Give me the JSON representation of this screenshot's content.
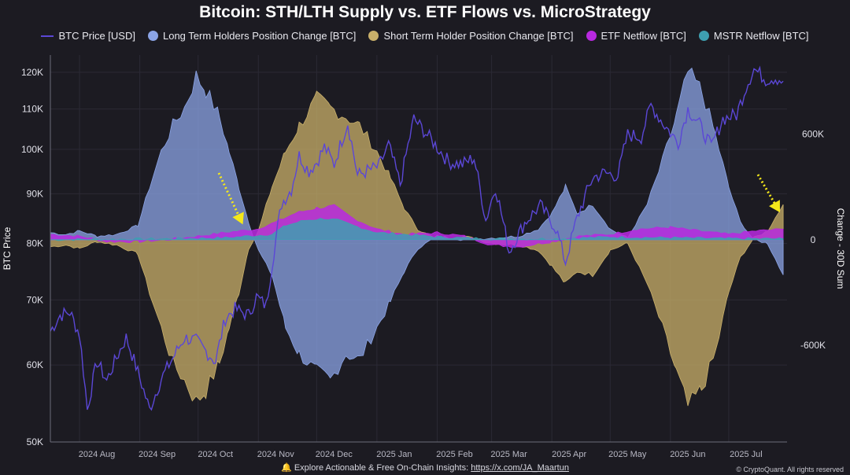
{
  "chart_data": {
    "type": "area",
    "title": "Bitcoin: STH/LTH Supply vs. ETF Flows vs. MicroStrategy",
    "left_axis_label": "BTC Price",
    "right_axis_label": "Change - 30D Sum",
    "left_axis": {
      "scale": "log",
      "range": [
        50000,
        125000
      ],
      "ticks": [
        {
          "value": 50000,
          "label": "50K"
        },
        {
          "value": 60000,
          "label": "60K"
        },
        {
          "value": 70000,
          "label": "70K"
        },
        {
          "value": 80000,
          "label": "80K"
        },
        {
          "value": 90000,
          "label": "90K"
        },
        {
          "value": 100000,
          "label": "100K"
        },
        {
          "value": 110000,
          "label": "110K"
        },
        {
          "value": 120000,
          "label": "120K"
        }
      ]
    },
    "right_axis": {
      "scale": "linear",
      "range": [
        -1150000,
        1050000
      ],
      "ticks": [
        {
          "value": 600000,
          "label": "600K"
        },
        {
          "value": 0,
          "label": "0"
        },
        {
          "value": -600000,
          "label": "-600K"
        }
      ]
    },
    "x_axis": {
      "range": [
        "2024-07-17",
        "2025-07-31"
      ],
      "ticks": [
        {
          "date": "2024-08-01",
          "label": "2024 Aug"
        },
        {
          "date": "2024-09-01",
          "label": "2024 Sep"
        },
        {
          "date": "2024-10-01",
          "label": "2024 Oct"
        },
        {
          "date": "2024-11-01",
          "label": "2024 Nov"
        },
        {
          "date": "2024-12-01",
          "label": "2024 Dec"
        },
        {
          "date": "2025-01-01",
          "label": "2025 Jan"
        },
        {
          "date": "2025-02-01",
          "label": "2025 Feb"
        },
        {
          "date": "2025-03-01",
          "label": "2025 Mar"
        },
        {
          "date": "2025-04-01",
          "label": "2025 Apr"
        },
        {
          "date": "2025-05-01",
          "label": "2025 May"
        },
        {
          "date": "2025-06-01",
          "label": "2025 Jun"
        },
        {
          "date": "2025-07-01",
          "label": "2025 Jul"
        }
      ]
    },
    "grid": true,
    "legend_position": "top",
    "series": [
      {
        "name": "BTC Price [USD]",
        "axis": "left",
        "kind": "line",
        "color": "#5b47d6",
        "points": [
          [
            "2024-07-17",
            65000
          ],
          [
            "2024-07-22",
            67500
          ],
          [
            "2024-07-27",
            68000
          ],
          [
            "2024-08-01",
            64500
          ],
          [
            "2024-08-05",
            54000
          ],
          [
            "2024-08-10",
            60500
          ],
          [
            "2024-08-15",
            57800
          ],
          [
            "2024-08-20",
            61000
          ],
          [
            "2024-08-25",
            64000
          ],
          [
            "2024-08-31",
            59000
          ],
          [
            "2024-09-06",
            54000
          ],
          [
            "2024-09-12",
            58000
          ],
          [
            "2024-09-18",
            61000
          ],
          [
            "2024-09-24",
            64000
          ],
          [
            "2024-09-30",
            63500
          ],
          [
            "2024-10-05",
            62000
          ],
          [
            "2024-10-10",
            60500
          ],
          [
            "2024-10-15",
            67000
          ],
          [
            "2024-10-20",
            68500
          ],
          [
            "2024-10-27",
            67500
          ],
          [
            "2024-10-31",
            70500
          ],
          [
            "2024-11-05",
            69000
          ],
          [
            "2024-11-08",
            76000
          ],
          [
            "2024-11-13",
            88000
          ],
          [
            "2024-11-18",
            91000
          ],
          [
            "2024-11-22",
            98500
          ],
          [
            "2024-11-27",
            95000
          ],
          [
            "2024-12-01",
            97000
          ],
          [
            "2024-12-05",
            100500
          ],
          [
            "2024-12-10",
            96500
          ],
          [
            "2024-12-17",
            106500
          ],
          [
            "2024-12-22",
            94000
          ],
          [
            "2024-12-27",
            95000
          ],
          [
            "2025-01-02",
            96000
          ],
          [
            "2025-01-07",
            101000
          ],
          [
            "2025-01-13",
            92000
          ],
          [
            "2025-01-20",
            107500
          ],
          [
            "2025-01-26",
            104000
          ],
          [
            "2025-02-01",
            100500
          ],
          [
            "2025-02-07",
            97000
          ],
          [
            "2025-02-14",
            96500
          ],
          [
            "2025-02-20",
            98000
          ],
          [
            "2025-02-26",
            84500
          ],
          [
            "2025-03-03",
            91500
          ],
          [
            "2025-03-10",
            78500
          ],
          [
            "2025-03-18",
            84000
          ],
          [
            "2025-03-26",
            87500
          ],
          [
            "2025-04-03",
            83000
          ],
          [
            "2025-04-08",
            76500
          ],
          [
            "2025-04-14",
            85000
          ],
          [
            "2025-04-22",
            93500
          ],
          [
            "2025-04-28",
            94500
          ],
          [
            "2025-05-05",
            94000
          ],
          [
            "2025-05-10",
            103500
          ],
          [
            "2025-05-17",
            103000
          ],
          [
            "2025-05-22",
            111000
          ],
          [
            "2025-05-28",
            106500
          ],
          [
            "2025-06-05",
            101500
          ],
          [
            "2025-06-10",
            110000
          ],
          [
            "2025-06-16",
            106000
          ],
          [
            "2025-06-22",
            100500
          ],
          [
            "2025-06-28",
            107500
          ],
          [
            "2025-07-05",
            108500
          ],
          [
            "2025-07-10",
            116000
          ],
          [
            "2025-07-14",
            121000
          ],
          [
            "2025-07-20",
            118000
          ],
          [
            "2025-07-25",
            118500
          ],
          [
            "2025-07-29",
            117500
          ]
        ]
      },
      {
        "name": "Long Term Holders Position Change [BTC]",
        "axis": "right",
        "kind": "area",
        "color": "#8ba4e6",
        "points": [
          [
            "2024-07-17",
            40000
          ],
          [
            "2024-07-25",
            30000
          ],
          [
            "2024-08-01",
            50000
          ],
          [
            "2024-08-10",
            20000
          ],
          [
            "2024-08-20",
            30000
          ],
          [
            "2024-08-31",
            80000
          ],
          [
            "2024-09-06",
            300000
          ],
          [
            "2024-09-12",
            500000
          ],
          [
            "2024-09-18",
            650000
          ],
          [
            "2024-09-24",
            750000
          ],
          [
            "2024-09-30",
            930000
          ],
          [
            "2024-10-05",
            850000
          ],
          [
            "2024-10-12",
            700000
          ],
          [
            "2024-10-17",
            500000
          ],
          [
            "2024-10-22",
            300000
          ],
          [
            "2024-10-27",
            100000
          ],
          [
            "2024-11-01",
            -60000
          ],
          [
            "2024-11-08",
            -200000
          ],
          [
            "2024-11-15",
            -500000
          ],
          [
            "2024-11-22",
            -650000
          ],
          [
            "2024-12-01",
            -750000
          ],
          [
            "2024-12-08",
            -800000
          ],
          [
            "2024-12-16",
            -650000
          ],
          [
            "2024-12-23",
            -680000
          ],
          [
            "2025-01-01",
            -500000
          ],
          [
            "2025-01-08",
            -350000
          ],
          [
            "2025-01-15",
            -180000
          ],
          [
            "2025-01-22",
            -50000
          ],
          [
            "2025-02-01",
            20000
          ],
          [
            "2025-02-15",
            0
          ],
          [
            "2025-03-01",
            10000
          ],
          [
            "2025-03-15",
            20000
          ],
          [
            "2025-03-25",
            60000
          ],
          [
            "2025-04-01",
            150000
          ],
          [
            "2025-04-08",
            300000
          ],
          [
            "2025-04-14",
            150000
          ],
          [
            "2025-04-22",
            200000
          ],
          [
            "2025-05-01",
            60000
          ],
          [
            "2025-05-10",
            10000
          ],
          [
            "2025-05-20",
            200000
          ],
          [
            "2025-05-28",
            450000
          ],
          [
            "2025-06-04",
            700000
          ],
          [
            "2025-06-10",
            950000
          ],
          [
            "2025-06-17",
            850000
          ],
          [
            "2025-06-24",
            600000
          ],
          [
            "2025-07-01",
            300000
          ],
          [
            "2025-07-07",
            100000
          ],
          [
            "2025-07-14",
            0
          ],
          [
            "2025-07-21",
            -20000
          ],
          [
            "2025-07-29",
            -200000
          ]
        ]
      },
      {
        "name": "Short Term Holder Position Change [BTC]",
        "axis": "right",
        "kind": "area",
        "color": "#c9b06a",
        "points": [
          [
            "2024-07-17",
            -40000
          ],
          [
            "2024-07-25",
            -30000
          ],
          [
            "2024-08-01",
            -50000
          ],
          [
            "2024-08-10",
            -10000
          ],
          [
            "2024-08-20",
            -30000
          ],
          [
            "2024-08-31",
            -80000
          ],
          [
            "2024-09-06",
            -300000
          ],
          [
            "2024-09-12",
            -500000
          ],
          [
            "2024-09-18",
            -700000
          ],
          [
            "2024-09-24",
            -800000
          ],
          [
            "2024-09-30",
            -920000
          ],
          [
            "2024-10-05",
            -860000
          ],
          [
            "2024-10-12",
            -700000
          ],
          [
            "2024-10-17",
            -500000
          ],
          [
            "2024-10-22",
            -300000
          ],
          [
            "2024-10-27",
            -50000
          ],
          [
            "2024-11-01",
            50000
          ],
          [
            "2024-11-08",
            300000
          ],
          [
            "2024-11-15",
            500000
          ],
          [
            "2024-11-22",
            650000
          ],
          [
            "2024-12-01",
            800000
          ],
          [
            "2024-12-08",
            750000
          ],
          [
            "2024-12-16",
            700000
          ],
          [
            "2024-12-23",
            650000
          ],
          [
            "2025-01-01",
            500000
          ],
          [
            "2025-01-08",
            350000
          ],
          [
            "2025-01-15",
            180000
          ],
          [
            "2025-01-22",
            60000
          ],
          [
            "2025-02-01",
            0
          ],
          [
            "2025-02-15",
            20000
          ],
          [
            "2025-03-01",
            -20000
          ],
          [
            "2025-03-15",
            -30000
          ],
          [
            "2025-03-25",
            -60000
          ],
          [
            "2025-04-01",
            -150000
          ],
          [
            "2025-04-08",
            -250000
          ],
          [
            "2025-04-14",
            -180000
          ],
          [
            "2025-04-22",
            -200000
          ],
          [
            "2025-05-01",
            -60000
          ],
          [
            "2025-05-10",
            -20000
          ],
          [
            "2025-05-20",
            -250000
          ],
          [
            "2025-05-28",
            -500000
          ],
          [
            "2025-06-04",
            -750000
          ],
          [
            "2025-06-10",
            -950000
          ],
          [
            "2025-06-17",
            -850000
          ],
          [
            "2025-06-24",
            -650000
          ],
          [
            "2025-07-01",
            -300000
          ],
          [
            "2025-07-07",
            -100000
          ],
          [
            "2025-07-14",
            10000
          ],
          [
            "2025-07-21",
            50000
          ],
          [
            "2025-07-29",
            200000
          ]
        ]
      },
      {
        "name": "ETF Netflow [BTC]",
        "axis": "right",
        "kind": "area",
        "color": "#b829e0",
        "points": [
          [
            "2024-07-17",
            30000
          ],
          [
            "2024-08-01",
            20000
          ],
          [
            "2024-08-15",
            -10000
          ],
          [
            "2024-09-01",
            -10000
          ],
          [
            "2024-09-15",
            0
          ],
          [
            "2024-10-01",
            20000
          ],
          [
            "2024-10-15",
            40000
          ],
          [
            "2024-10-31",
            60000
          ],
          [
            "2024-11-10",
            100000
          ],
          [
            "2024-11-20",
            150000
          ],
          [
            "2024-12-01",
            180000
          ],
          [
            "2024-12-10",
            190000
          ],
          [
            "2024-12-20",
            120000
          ],
          [
            "2025-01-01",
            60000
          ],
          [
            "2025-01-15",
            30000
          ],
          [
            "2025-02-01",
            40000
          ],
          [
            "2025-02-15",
            20000
          ],
          [
            "2025-03-01",
            -30000
          ],
          [
            "2025-03-15",
            -40000
          ],
          [
            "2025-04-01",
            -10000
          ],
          [
            "2025-04-15",
            20000
          ],
          [
            "2025-05-01",
            30000
          ],
          [
            "2025-05-15",
            60000
          ],
          [
            "2025-06-01",
            70000
          ],
          [
            "2025-06-15",
            50000
          ],
          [
            "2025-07-01",
            30000
          ],
          [
            "2025-07-15",
            50000
          ],
          [
            "2025-07-29",
            60000
          ]
        ]
      },
      {
        "name": "MSTR Netflow [BTC]",
        "axis": "right",
        "kind": "area",
        "color": "#3e9fb0",
        "points": [
          [
            "2024-07-17",
            0
          ],
          [
            "2024-09-15",
            5000
          ],
          [
            "2024-10-15",
            10000
          ],
          [
            "2024-11-08",
            30000
          ],
          [
            "2024-11-15",
            80000
          ],
          [
            "2024-11-25",
            110000
          ],
          [
            "2024-12-05",
            120000
          ],
          [
            "2024-12-12",
            110000
          ],
          [
            "2024-12-20",
            80000
          ],
          [
            "2025-01-01",
            40000
          ],
          [
            "2025-01-15",
            30000
          ],
          [
            "2025-02-01",
            15000
          ],
          [
            "2025-03-01",
            5000
          ],
          [
            "2025-04-01",
            5000
          ],
          [
            "2025-05-01",
            15000
          ],
          [
            "2025-06-01",
            10000
          ],
          [
            "2025-07-01",
            5000
          ],
          [
            "2025-07-29",
            5000
          ]
        ]
      }
    ]
  },
  "footer": {
    "icon": "bell-icon",
    "text": "Explore Actionable & Free On-Chain Insights: ",
    "link": "https://x.com/JA_Maartun",
    "copyright": "© CryptoQuant. All rights reserved"
  }
}
